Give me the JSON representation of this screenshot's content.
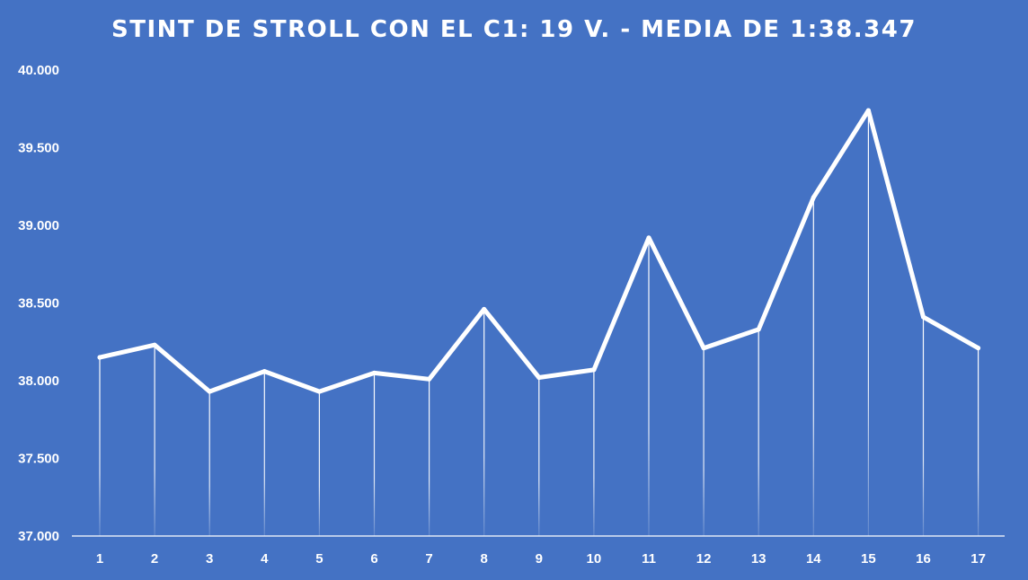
{
  "chart_data": {
    "type": "line",
    "title": "STINT DE STROLL CON EL C1: 19 V. - MEDIA DE 1:38.347",
    "xlabel": "",
    "ylabel": "",
    "categories": [
      "1",
      "2",
      "3",
      "4",
      "5",
      "6",
      "7",
      "8",
      "9",
      "10",
      "11",
      "12",
      "13",
      "14",
      "15",
      "16",
      "17"
    ],
    "series": [
      {
        "values": [
          38.15,
          38.23,
          37.93,
          38.06,
          37.93,
          38.05,
          38.01,
          38.46,
          38.02,
          38.07,
          38.92,
          38.21,
          38.33,
          39.18,
          39.74,
          38.41,
          38.21
        ]
      }
    ],
    "ylim": [
      37.0,
      40.0
    ],
    "y_ticks": [
      "37.000",
      "37.500",
      "38.000",
      "38.500",
      "39.000",
      "39.500",
      "40.000"
    ],
    "drop_lines": true,
    "grid": false,
    "legend": "none",
    "colors": {
      "background": "#4472c4",
      "line": "#ffffff",
      "text": "#ffffff"
    }
  }
}
